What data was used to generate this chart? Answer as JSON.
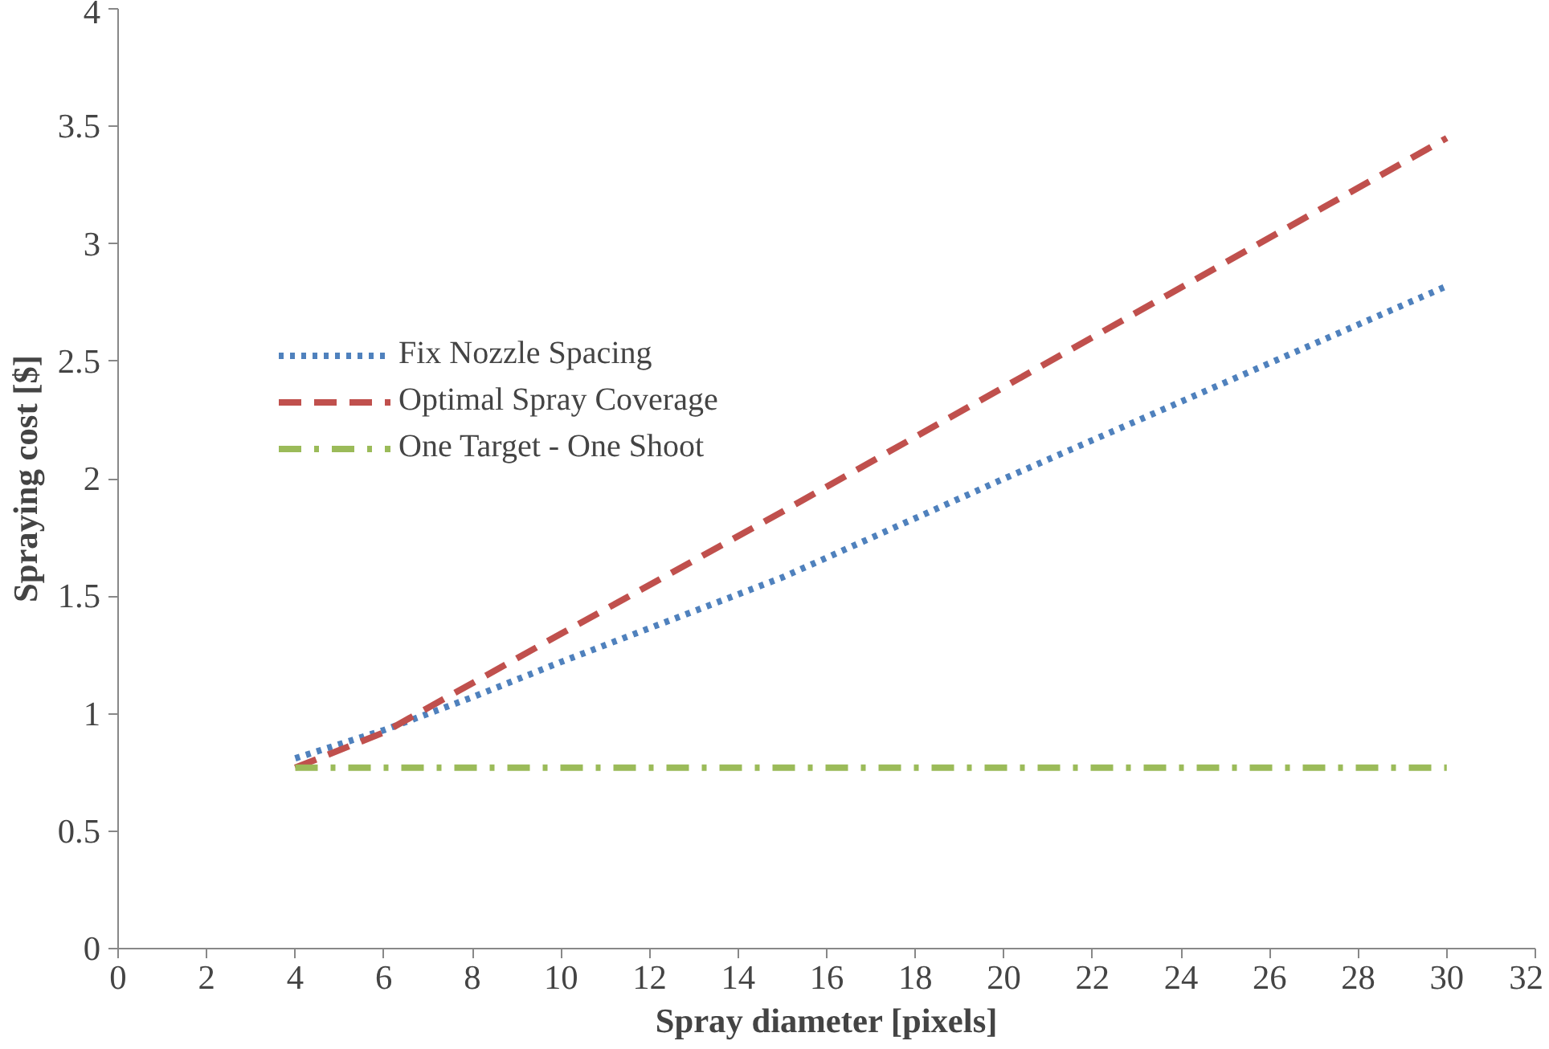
{
  "chart_data": {
    "type": "line",
    "xlabel": "Spray diameter [pixels]",
    "ylabel": "Spraying cost [$]",
    "xlim": [
      0,
      32
    ],
    "xticks": [
      0,
      2,
      4,
      6,
      8,
      10,
      12,
      14,
      16,
      18,
      20,
      22,
      24,
      26,
      28,
      30,
      32
    ],
    "ylim": [
      0,
      4
    ],
    "yticks": [
      0,
      0.5,
      1,
      1.5,
      2,
      2.5,
      3,
      3.5,
      4
    ],
    "grid": false,
    "legend": "top left",
    "marker": "none",
    "series": [
      {
        "name": "Fix Nozzle Spacing",
        "color": "#4f81bd",
        "line_style": "dotted",
        "x": [
          4,
          6,
          8,
          10,
          15,
          20,
          25,
          30
        ],
        "values": [
          0.81,
          0.93,
          1.07,
          1.22,
          1.58,
          2.0,
          2.41,
          2.82
        ]
      },
      {
        "name": "Optimal Spray Coverage",
        "color": "#c0504d",
        "line_style": "dashed",
        "x": [
          4,
          6,
          8,
          10,
          15,
          20,
          25,
          30
        ],
        "values": [
          0.77,
          0.92,
          1.13,
          1.34,
          1.86,
          2.39,
          2.92,
          3.45
        ]
      },
      {
        "name": "One Target - One Shoot",
        "color": "#9bbb59",
        "line_style": "dashdot",
        "x": [
          4,
          30
        ],
        "values": [
          0.77,
          0.77
        ]
      }
    ]
  }
}
